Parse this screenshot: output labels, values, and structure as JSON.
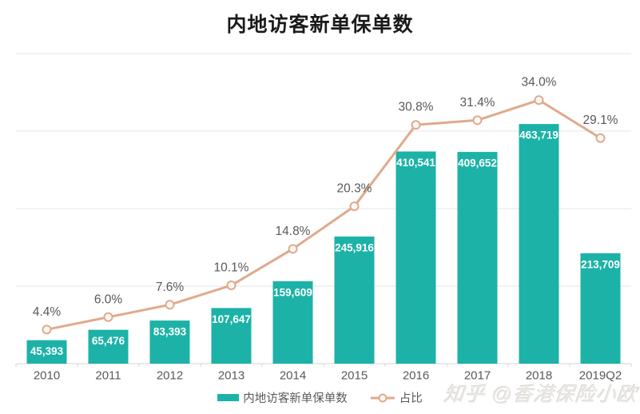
{
  "page": {
    "title": "内地访客新单保单数",
    "watermark": "知乎 @香港保险小欧"
  },
  "legend": {
    "bar_label": "内地访客新单保单数",
    "line_label": "占比"
  },
  "colors": {
    "bar": "#1DB2A7",
    "line": "#DFAA8C",
    "marker_fill": "#FDF8F4",
    "grid": "#E4E4E4",
    "axis": "#D6D6D6",
    "label": "#595959",
    "bar_value_text": "#FFFFFF",
    "title": "#1A1A1A"
  },
  "chart_data": {
    "type": "bar",
    "subtype": "combo-bar-line",
    "title": "内地访客新单保单数",
    "categories": [
      "2010",
      "2011",
      "2012",
      "2013",
      "2014",
      "2015",
      "2016",
      "2017",
      "2018",
      "2019Q2"
    ],
    "series": [
      {
        "name": "内地访客新单保单数",
        "type": "bar",
        "axis": "left",
        "values": [
          45393,
          65476,
          83393,
          107647,
          159609,
          245916,
          410541,
          409652,
          463719,
          213709
        ],
        "labels": [
          "45,393",
          "65,476",
          "83,393",
          "107,647",
          "159,609",
          "245,916",
          "410,541",
          "409,652",
          "463,719",
          "213,709"
        ]
      },
      {
        "name": "占比",
        "type": "line",
        "axis": "right",
        "values": [
          4.4,
          6.0,
          7.6,
          10.1,
          14.8,
          20.3,
          30.8,
          31.4,
          34.0,
          29.1
        ],
        "labels": [
          "4.4%",
          "6.0%",
          "7.6%",
          "10.1%",
          "14.8%",
          "20.3%",
          "30.8%",
          "31.4%",
          "34.0%",
          "29.1%"
        ]
      }
    ],
    "bar_axis": {
      "min": 0,
      "max": 600000,
      "grid_interval": 150000,
      "labels_visible": false
    },
    "line_axis": {
      "min": 0,
      "max": 40,
      "labels_visible": false
    },
    "grid": true,
    "legend_position": "bottom",
    "value_labels": "inside-bar-top",
    "percent_labels": "above-marker"
  }
}
